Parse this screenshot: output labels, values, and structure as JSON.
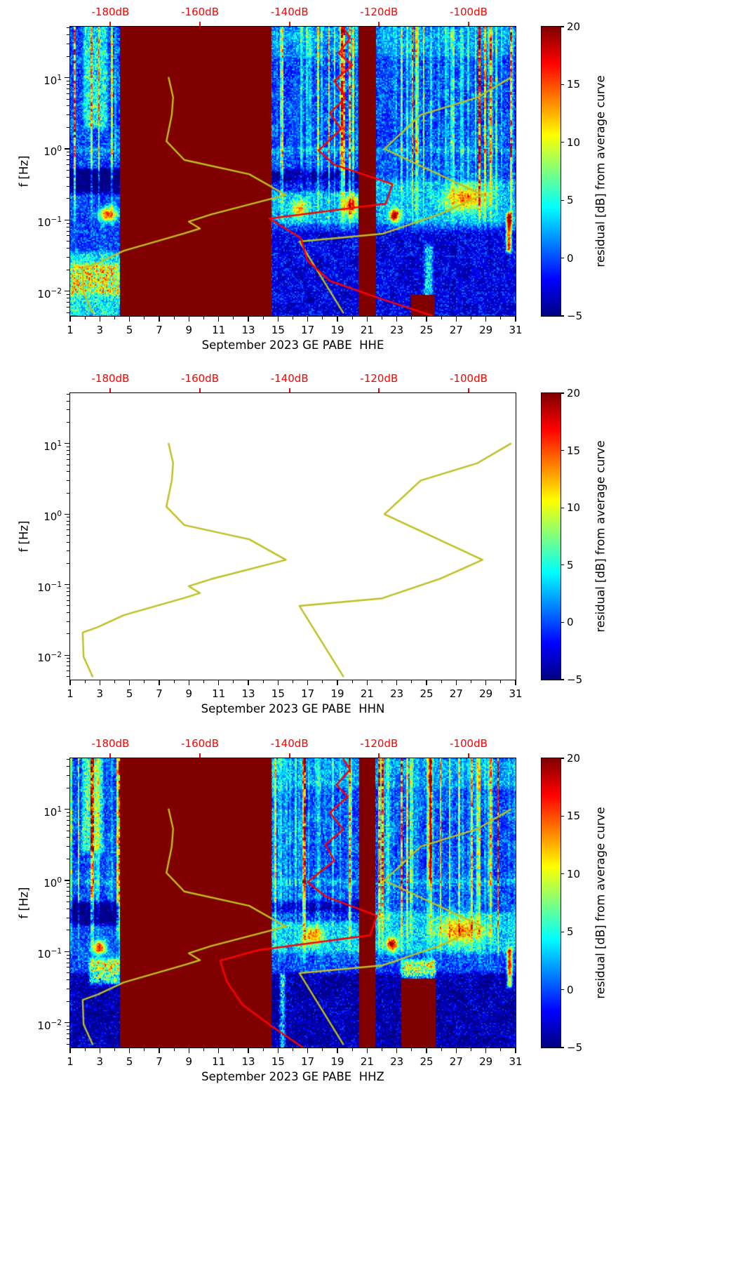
{
  "background": "#ffffff",
  "chart_data": {
    "type": "heatmap",
    "subtype": "spectrogram-with-psd-curves",
    "shared": {
      "ylabel": "f [Hz]",
      "x_ticks": [
        1,
        3,
        5,
        7,
        9,
        11,
        13,
        15,
        17,
        19,
        21,
        23,
        25,
        27,
        29,
        31
      ],
      "x_minor_ticks": [
        2,
        4,
        6,
        8,
        10,
        12,
        14,
        16,
        18,
        20,
        22,
        24,
        26,
        28,
        30
      ],
      "x_range_days": [
        1,
        31
      ],
      "y_tick_exponents": [
        "1",
        "0",
        "−1",
        "−2"
      ],
      "y_tick_exp_values": [
        1,
        0,
        -1,
        -2
      ],
      "y_log10_range": [
        -2.347,
        1.716
      ],
      "top_axis": {
        "color": "#ff0000",
        "tick_labels": [
          "-180dB",
          "-160dB",
          "-140dB",
          "-120dB",
          "-100dB"
        ],
        "tick_db": [
          -180,
          -160,
          -140,
          -120,
          -100
        ],
        "db_range": [
          -189,
          -89.5
        ]
      },
      "colorbar": {
        "label": "residual [dB] from average curve",
        "min": -5,
        "max": 20,
        "tick_labels": [
          "20",
          "15",
          "10",
          "5",
          "0",
          "−5"
        ],
        "tick_values": [
          20,
          15,
          10,
          5,
          0,
          -5
        ],
        "colormap": "jet"
      },
      "curves": {
        "yellow": {
          "name": "average PSD curve (dB vs f)",
          "color": "#bfbf22",
          "segments": [
            [
              [
                -167,
                10
              ],
              [
                -166,
                5.3
              ],
              [
                -166.3,
                3.0
              ],
              [
                -167.5,
                1.28
              ],
              [
                -163.5,
                0.7
              ],
              [
                -149,
                0.44
              ],
              [
                -140.8,
                0.225
              ],
              [
                -157.5,
                0.12
              ],
              [
                -162.5,
                0.095
              ],
              [
                -160,
                0.076
              ],
              [
                -163.5,
                0.065
              ],
              [
                -177,
                0.037
              ],
              [
                -182.8,
                0.025
              ],
              [
                -186.2,
                0.021
              ],
              [
                -186,
                0.0095
              ],
              [
                -184,
                0.005
              ]
            ],
            [
              [
                -128,
                0.005
              ],
              [
                -137.8,
                0.05
              ],
              [
                -119.3,
                0.064
              ],
              [
                -106.3,
                0.122
              ],
              [
                -96.9,
                0.225
              ],
              [
                -118.8,
                1.0
              ],
              [
                -110.7,
                3.0
              ],
              [
                -98,
                5.3
              ],
              [
                -90.6,
                10
              ]
            ]
          ]
        },
        "red_name": "reference PSD curve (dB vs f)",
        "red_color": "#ff0000"
      }
    },
    "panels": [
      {
        "id": "HHE",
        "xlabel": "September 2023 GE PABE  HHE",
        "spectrogram": true,
        "seed": 7,
        "saturated_blocks": [
          [
            4.35,
            14.55,
            -2.35,
            1.72
          ],
          [
            20.4,
            21.6,
            -2.35,
            1.72
          ],
          [
            23.95,
            25.55,
            -2.35,
            -2.05
          ]
        ],
        "stripe_regions": [
          [
            1,
            4.35
          ],
          [
            14.55,
            31
          ]
        ],
        "features": [
          {
            "t": "r",
            "d": [
              1,
              4.35
            ],
            "lf": [
              -0.62,
              -0.28
            ],
            "v": -6
          },
          {
            "t": "r",
            "d": [
              14.55,
              21.0
            ],
            "lf": [
              -0.6,
              -0.3
            ],
            "v": -4.5
          },
          {
            "t": "r",
            "d": [
              14.55,
              31
            ],
            "lf": [
              -2.35,
              -1.15
            ],
            "v": -2.5
          },
          {
            "t": "r",
            "d": [
              1,
              4.35
            ],
            "lf": [
              -2.05,
              -1.62
            ],
            "v": 15,
            "n": 1
          },
          {
            "t": "r",
            "d": [
              1,
              4.35
            ],
            "lf": [
              -2.35,
              -2.05
            ],
            "v": 7,
            "n": 1
          },
          {
            "t": "r",
            "d": [
              1,
              4.35
            ],
            "lf": [
              -1.62,
              -1.45
            ],
            "v": 6,
            "n": 1
          },
          {
            "t": "r",
            "d": [
              14.55,
              31
            ],
            "lf": [
              -1.05,
              -0.45
            ],
            "v": 4.5,
            "n": 1
          },
          {
            "t": "r",
            "d": [
              1,
              31
            ],
            "lf": [
              -0.05,
              0.01
            ],
            "v": 4,
            "n": 1
          },
          {
            "t": "r",
            "d": [
              1.9,
              3.5
            ],
            "lf": [
              0.3,
              1.72
            ],
            "v": 7,
            "n": 1
          },
          {
            "t": "r",
            "d": [
              14.55,
              31
            ],
            "lf": [
              1.3,
              1.72
            ],
            "v": 3,
            "n": 1
          },
          {
            "t": "b",
            "c": [
              3.55,
              -0.92
            ],
            "r": [
              0.55,
              0.1
            ],
            "v": 16
          },
          {
            "t": "b",
            "c": [
              16.4,
              -0.85
            ],
            "r": [
              0.5,
              0.12
            ],
            "v": 9
          },
          {
            "t": "b",
            "c": [
              19.9,
              -0.8
            ],
            "r": [
              0.45,
              0.14
            ],
            "v": 12
          },
          {
            "t": "b",
            "c": [
              22.85,
              -0.93
            ],
            "r": [
              0.3,
              0.09
            ],
            "v": 18
          },
          {
            "t": "b",
            "c": [
              27.6,
              -0.7
            ],
            "r": [
              1.3,
              0.17
            ],
            "v": 10
          },
          {
            "t": "r",
            "d": [
              30.4,
              30.7
            ],
            "lf": [
              -1.45,
              -0.9
            ],
            "v": 18
          },
          {
            "t": "r",
            "d": [
              24.85,
              25.4
            ],
            "lf": [
              -2.35,
              -1.35
            ],
            "v": 9,
            "n": 1
          }
        ],
        "red_curve": [
          [
            -128,
            51
          ],
          [
            -126.5,
            36
          ],
          [
            -129,
            22
          ],
          [
            -126,
            15
          ],
          [
            -130,
            9
          ],
          [
            -127.5,
            5.2
          ],
          [
            -131,
            3.2
          ],
          [
            -128.5,
            1.9
          ],
          [
            -133.5,
            0.95
          ],
          [
            -130,
            0.6
          ],
          [
            -117,
            0.32
          ],
          [
            -118.5,
            0.17
          ],
          [
            -144.5,
            0.105
          ],
          [
            -137.5,
            0.056
          ],
          [
            -136,
            0.027
          ],
          [
            -131,
            0.014
          ],
          [
            -120,
            0.008
          ],
          [
            -108,
            0.0045
          ]
        ]
      },
      {
        "id": "HHN",
        "xlabel": "September 2023 GE PABE  HHN",
        "spectrogram": false,
        "red_curve": []
      },
      {
        "id": "HHZ",
        "xlabel": "September 2023 GE PABE  HHZ",
        "spectrogram": true,
        "seed": 13,
        "saturated_blocks": [
          [
            4.35,
            14.55,
            -2.35,
            1.72
          ],
          [
            20.45,
            21.55,
            -2.35,
            1.72
          ],
          [
            23.3,
            25.6,
            -2.35,
            -1.38
          ]
        ],
        "stripe_regions": [
          [
            1,
            4.35
          ],
          [
            14.55,
            31
          ]
        ],
        "features": [
          {
            "t": "r",
            "d": [
              1,
              4.35
            ],
            "lf": [
              -0.62,
              -0.3
            ],
            "v": -6
          },
          {
            "t": "r",
            "d": [
              14.55,
              21
            ],
            "lf": [
              -0.58,
              -0.3
            ],
            "v": -4
          },
          {
            "t": "r",
            "d": [
              1,
              31
            ],
            "lf": [
              -2.35,
              -1.3
            ],
            "v": -4
          },
          {
            "t": "r",
            "d": [
              2.3,
              4.35
            ],
            "lf": [
              -1.45,
              -1.1
            ],
            "v": 14,
            "n": 1
          },
          {
            "t": "b",
            "c": [
              3.0,
              -0.95
            ],
            "r": [
              0.45,
              0.1
            ],
            "v": 16
          },
          {
            "t": "r",
            "d": [
              14.55,
              31
            ],
            "lf": [
              -1.02,
              -0.45
            ],
            "v": 5,
            "n": 1
          },
          {
            "t": "r",
            "d": [
              23.3,
              25.6
            ],
            "lf": [
              -1.38,
              -1.12
            ],
            "v": 13,
            "n": 1
          },
          {
            "t": "r",
            "d": [
              1,
              31
            ],
            "lf": [
              -0.05,
              0.01
            ],
            "v": 4,
            "n": 1
          },
          {
            "t": "r",
            "d": [
              1.8,
              3.2
            ],
            "lf": [
              0.4,
              1.72
            ],
            "v": 8,
            "n": 1
          },
          {
            "t": "r",
            "d": [
              14.55,
              31
            ],
            "lf": [
              1.3,
              1.72
            ],
            "v": 3,
            "n": 1
          },
          {
            "t": "b",
            "c": [
              17.4,
              -0.78
            ],
            "r": [
              0.6,
              0.13
            ],
            "v": 10
          },
          {
            "t": "b",
            "c": [
              22.7,
              -0.9
            ],
            "r": [
              0.35,
              0.1
            ],
            "v": 17
          },
          {
            "t": "b",
            "c": [
              27.3,
              -0.7
            ],
            "r": [
              1.3,
              0.17
            ],
            "v": 11
          },
          {
            "t": "r",
            "d": [
              25.18,
              25.32
            ],
            "lf": [
              0.0,
              1.72
            ],
            "v": 16
          },
          {
            "t": "r",
            "d": [
              30.45,
              30.75
            ],
            "lf": [
              -1.5,
              -0.95
            ],
            "v": 16
          },
          {
            "t": "r",
            "d": [
              15.15,
              15.45
            ],
            "lf": [
              -2.35,
              -1.3
            ],
            "v": 12,
            "n": 1
          }
        ],
        "red_curve": [
          [
            -128,
            51
          ],
          [
            -126.5,
            36
          ],
          [
            -129.5,
            22
          ],
          [
            -127,
            15
          ],
          [
            -131,
            9
          ],
          [
            -128,
            5.2
          ],
          [
            -132,
            3.2
          ],
          [
            -130,
            1.9
          ],
          [
            -136,
            0.95
          ],
          [
            -132,
            0.6
          ],
          [
            -120.5,
            0.32
          ],
          [
            -122,
            0.17
          ],
          [
            -147,
            0.105
          ],
          [
            -155.5,
            0.075
          ],
          [
            -154,
            0.038
          ],
          [
            -150.5,
            0.018
          ],
          [
            -144,
            0.009
          ],
          [
            -137,
            0.0045
          ]
        ]
      }
    ]
  }
}
